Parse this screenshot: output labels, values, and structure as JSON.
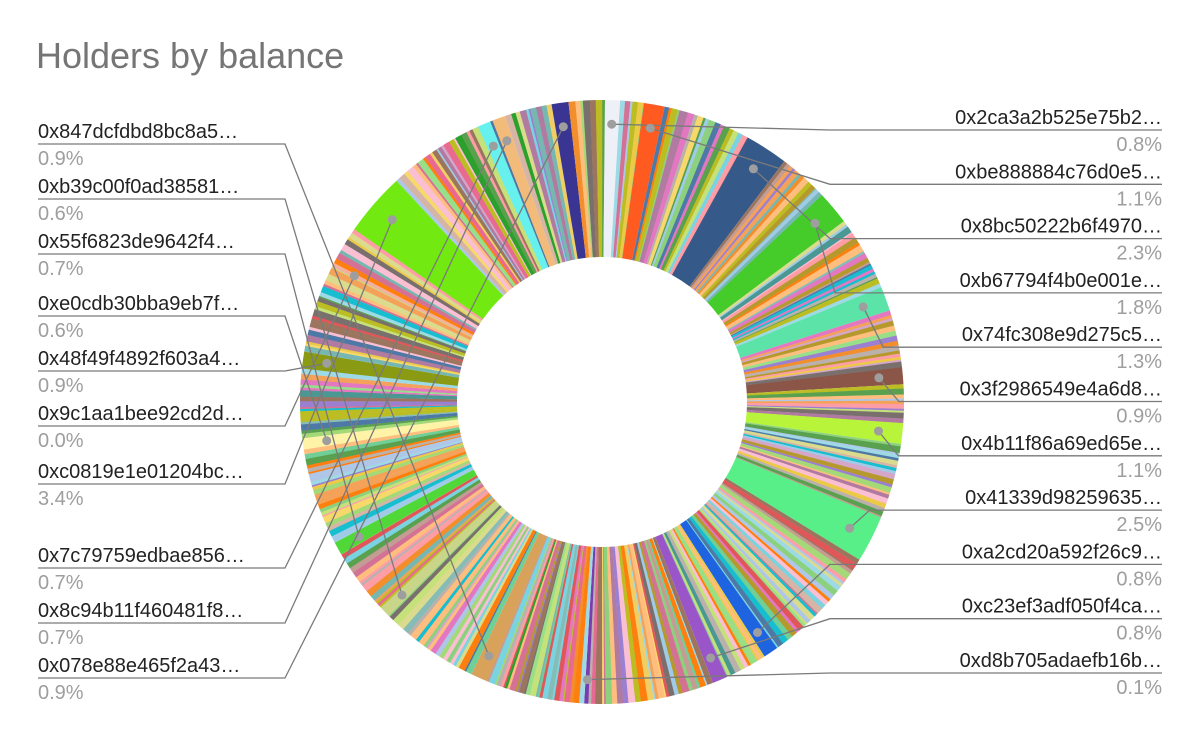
{
  "chart_data": {
    "type": "pie",
    "variant": "donut",
    "title": "Holders by balance",
    "legend": "none",
    "labeled_slices": [
      {
        "name": "0x2ca3a2b525e75b2…",
        "percent": "0.8%",
        "value": 0.8,
        "side": "right"
      },
      {
        "name": "0xbe888884c76d0e5…",
        "percent": "1.1%",
        "value": 1.1,
        "side": "right"
      },
      {
        "name": "0x8bc50222b6f4970…",
        "percent": "2.3%",
        "value": 2.3,
        "side": "right"
      },
      {
        "name": "0xb67794f4b0e001e…",
        "percent": "1.8%",
        "value": 1.8,
        "side": "right"
      },
      {
        "name": "0x74fc308e9d275c5…",
        "percent": "1.3%",
        "value": 1.3,
        "side": "right"
      },
      {
        "name": "0x3f2986549e4a6d8…",
        "percent": "0.9%",
        "value": 0.9,
        "side": "right"
      },
      {
        "name": "0x4b11f86a69ed65e…",
        "percent": "1.1%",
        "value": 1.1,
        "side": "right"
      },
      {
        "name": "0x41339d98259635…",
        "percent": "2.5%",
        "value": 2.5,
        "side": "right"
      },
      {
        "name": "0xa2cd20a592f26c9…",
        "percent": "0.8%",
        "value": 0.8,
        "side": "right"
      },
      {
        "name": "0xc23ef3adf050f4ca…",
        "percent": "0.8%",
        "value": 0.8,
        "side": "right"
      },
      {
        "name": "0xd8b705adaefb16b…",
        "percent": "0.1%",
        "value": 0.1,
        "side": "right"
      },
      {
        "name": "0x847dcfdbd8bc8a5…",
        "percent": "0.9%",
        "value": 0.9,
        "side": "left"
      },
      {
        "name": "0xb39c00f0ad38581…",
        "percent": "0.6%",
        "value": 0.6,
        "side": "left"
      },
      {
        "name": "0x55f6823de9642f4…",
        "percent": "0.7%",
        "value": 0.7,
        "side": "left"
      },
      {
        "name": "0xe0cdb30bba9eb7f…",
        "percent": "0.6%",
        "value": 0.6,
        "side": "left"
      },
      {
        "name": "0x48f49f4892f603a4…",
        "percent": "0.9%",
        "value": 0.9,
        "side": "left"
      },
      {
        "name": "0x9c1aa1bee92cd2d…",
        "percent": "0.0%",
        "value": 0.0,
        "side": "left"
      },
      {
        "name": "0xc0819e1e01204bc…",
        "percent": "3.4%",
        "value": 3.4,
        "side": "left"
      },
      {
        "name": "0x7c79759edbae856…",
        "percent": "0.7%",
        "value": 0.7,
        "side": "left"
      },
      {
        "name": "0x8c94b11f460481f8…",
        "percent": "0.7%",
        "value": 0.7,
        "side": "left"
      },
      {
        "name": "0x078e88e465f2a43…",
        "percent": "0.9%",
        "value": 0.9,
        "side": "left"
      }
    ],
    "colors": {
      "0x2ca3a2b525e75b2…": "#eef0f8",
      "0xbe888884c76d0e5…": "#ff5a1f",
      "0x8bc50222b6f4970…": "#355a8a",
      "0xb67794f4b0e001e…": "#45cc2a",
      "0x74fc308e9d275c5…": "#5be3a8",
      "0x3f2986549e4a6d8…": "#8b5648",
      "0x4b11f86a69ed65e…": "#b8f53a",
      "0x41339d98259635…": "#58ef88",
      "0xa2cd20a592f26c9…": "#1e63e0",
      "0xc23ef3adf050f4ca…": "#9a55c8",
      "0xd8b705adaefb16b…": "#7a3db0",
      "0x847dcfdbd8bc8a5…": "#d9a25a",
      "0xb39c00f0ad38581…": "#c9d68a",
      "0x55f6823de9642f4…": "#4fd838",
      "0xe0cdb30bba9eb7f…": "#fff3a8",
      "0x48f49f4892f603a4…": "#8a9a12",
      "0x9c1aa1bee92cd2d…": "#f2b0a0",
      "0xc0819e1e01204bc…": "#72ea12",
      "0x7c79759edbae856…": "#66f0ee",
      "0x8c94b11f460481f8…": "#f3bb7a",
      "0x078e88e465f2a43…": "#3a3592"
    },
    "filler_palette": [
      "#f4a259",
      "#a3d977",
      "#e86a92",
      "#7ad3e0",
      "#c5e17a",
      "#9b7fd1",
      "#f7d96b",
      "#6fcf97",
      "#f28e2b",
      "#4e79a7",
      "#e15759",
      "#76b7b2",
      "#59a14f",
      "#edc948",
      "#b07aa1",
      "#ff9da7",
      "#9c755f",
      "#bab0ac",
      "#8cd17d",
      "#ffbe7d",
      "#a0cbe8",
      "#d4a6c8",
      "#86bcb6",
      "#f1ce63",
      "#499894",
      "#fabfd2",
      "#d37295",
      "#b6992d",
      "#79706e",
      "#d7b5a6",
      "#2ca02c",
      "#ff7f0e",
      "#17becf",
      "#bcbd22",
      "#e377c2",
      "#aec7e8",
      "#98df8a",
      "#c49c94",
      "#dbdb8d",
      "#9edae5"
    ]
  }
}
